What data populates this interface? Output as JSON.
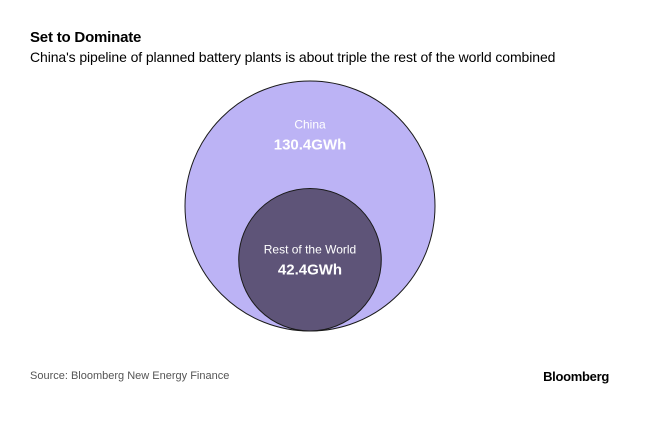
{
  "title": "Set to Dominate",
  "subtitle": "China's pipeline of planned battery plants is about triple the rest of the world combined",
  "source": "Source: Bloomberg New Energy Finance",
  "brand": "Bloomberg",
  "colors": {
    "outer_fill": "#bcb3f5",
    "inner_fill": "#5e5478",
    "stroke": "#1a1a1a",
    "label_text": "#ffffff"
  },
  "chart_data": {
    "type": "area",
    "shape": "nested-circles",
    "items": [
      {
        "name": "China",
        "value": 130.4,
        "unit": "GWh",
        "label": "130.4GWh"
      },
      {
        "name": "Rest of the World",
        "value": 42.4,
        "unit": "GWh",
        "label": "42.4GWh"
      }
    ]
  }
}
